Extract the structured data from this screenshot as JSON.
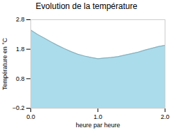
{
  "chart_data": {
    "type": "area",
    "title": "Evolution de la température",
    "xlabel": "heure par heure",
    "ylabel": "Température en °C",
    "x": [
      0,
      0.1,
      0.2,
      0.3,
      0.4,
      0.5,
      0.6,
      0.7,
      0.8,
      0.9,
      1.0,
      1.1,
      1.2,
      1.3,
      1.4,
      1.5,
      1.6,
      1.7,
      1.8,
      1.9,
      2.0
    ],
    "values": [
      2.45,
      2.3,
      2.18,
      2.05,
      1.93,
      1.82,
      1.72,
      1.63,
      1.57,
      1.52,
      1.48,
      1.5,
      1.52,
      1.55,
      1.6,
      1.65,
      1.7,
      1.77,
      1.83,
      1.89,
      1.93
    ],
    "color": "#aadcec",
    "xlim": [
      0,
      2
    ],
    "xticks": [
      0,
      1,
      2
    ],
    "ylim": [
      -0.2,
      2.8
    ],
    "yticks": [
      -0.2,
      0.8,
      1.8,
      2.8
    ],
    "grid": false
  }
}
